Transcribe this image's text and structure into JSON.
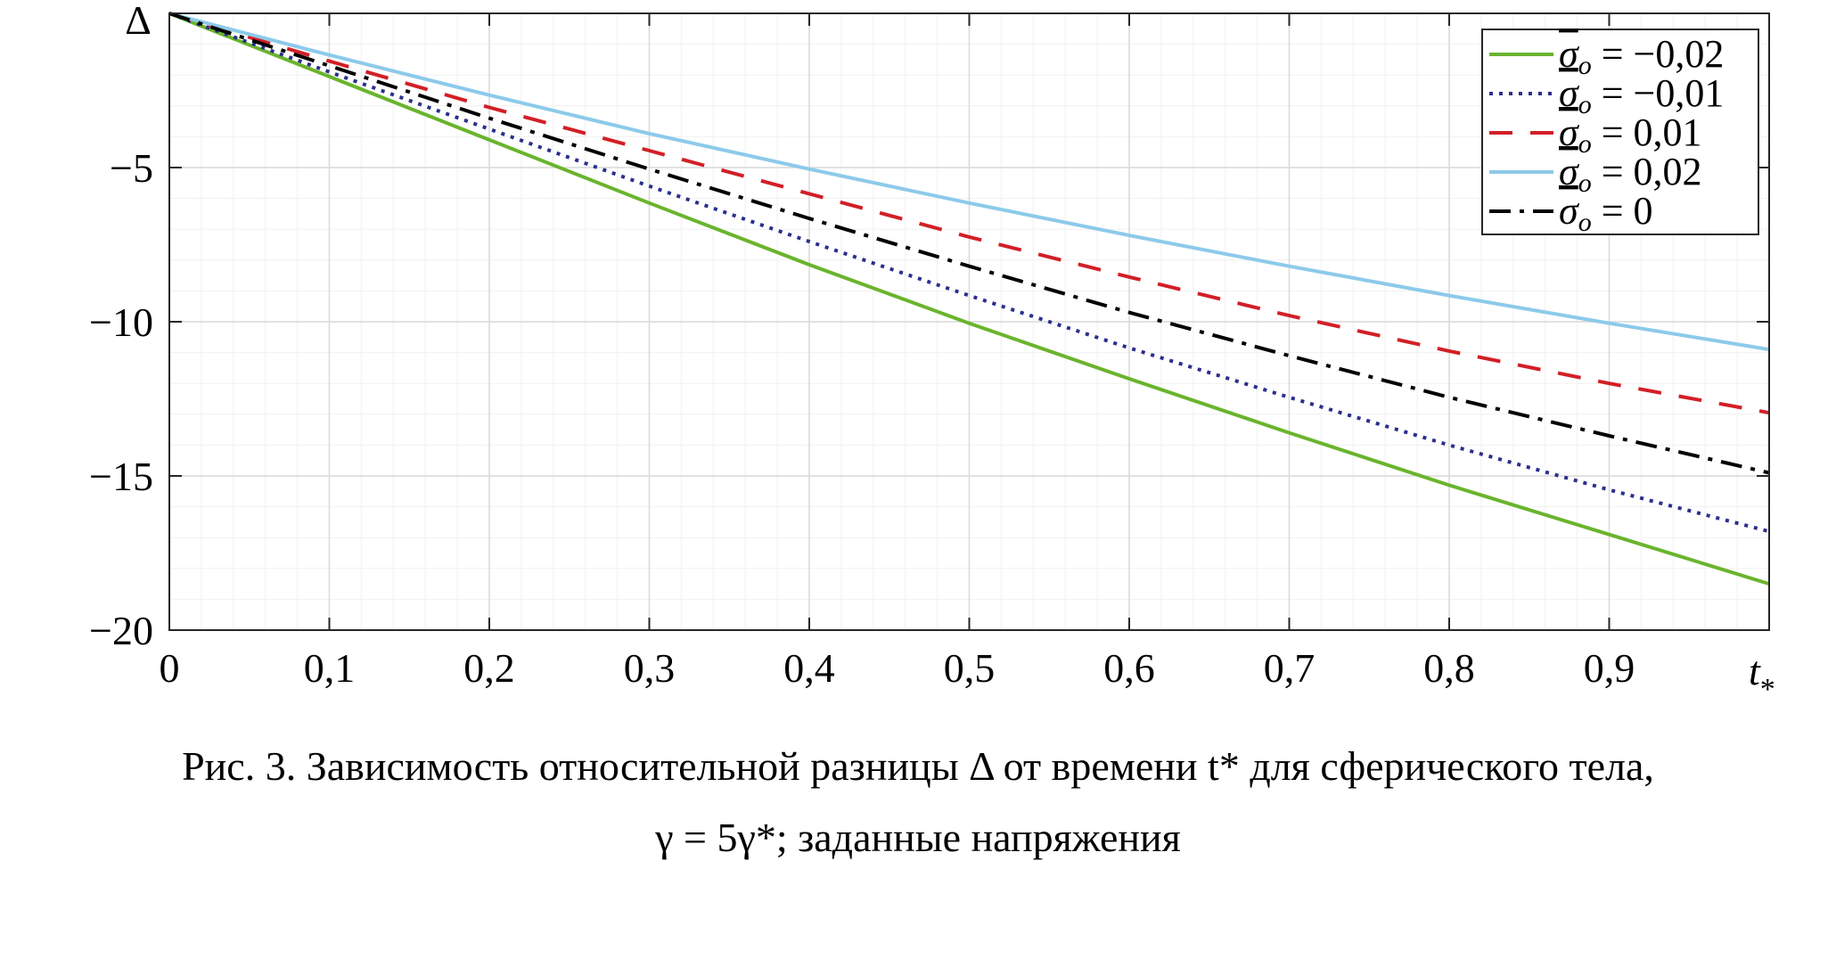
{
  "chart_data": {
    "type": "line",
    "xlabel": "t",
    "xlabel_sub": "*",
    "ylabel": "Δ",
    "xlim": [
      0,
      1
    ],
    "ylim": [
      -20,
      0
    ],
    "x_ticks": [
      {
        "value": 0,
        "label": "0"
      },
      {
        "value": 0.1,
        "label": "0,1"
      },
      {
        "value": 0.2,
        "label": "0,2"
      },
      {
        "value": 0.3,
        "label": "0,3"
      },
      {
        "value": 0.4,
        "label": "0,4"
      },
      {
        "value": 0.5,
        "label": "0,5"
      },
      {
        "value": 0.6,
        "label": "0,6"
      },
      {
        "value": 0.7,
        "label": "0,7"
      },
      {
        "value": 0.8,
        "label": "0,8"
      },
      {
        "value": 0.9,
        "label": "0,9"
      }
    ],
    "y_ticks": [
      {
        "value": -5,
        "label": "−5"
      },
      {
        "value": -10,
        "label": "−10"
      },
      {
        "value": -15,
        "label": "−15"
      },
      {
        "value": -20,
        "label": "−20"
      }
    ],
    "grid": true,
    "legend_position": "top-right",
    "series": [
      {
        "name": "= −0,02",
        "color": "#6ab42d",
        "style": "solid",
        "x": [
          0,
          0.1,
          0.2,
          0.3,
          0.4,
          0.5,
          0.6,
          0.7,
          0.8,
          0.9,
          1.0
        ],
        "y": [
          0,
          -2.05,
          -4.1,
          -6.15,
          -8.15,
          -10.05,
          -11.85,
          -13.6,
          -15.3,
          -16.9,
          -18.5
        ]
      },
      {
        "name": "= −0,01",
        "color": "#2a2f8c",
        "style": "dotted",
        "x": [
          0,
          0.1,
          0.2,
          0.3,
          0.4,
          0.5,
          0.6,
          0.7,
          0.8,
          0.9,
          1.0
        ],
        "y": [
          0,
          -1.9,
          -3.75,
          -5.6,
          -7.4,
          -9.15,
          -10.85,
          -12.45,
          -14.0,
          -15.45,
          -16.8
        ]
      },
      {
        "name": "= 0,01",
        "color": "#d21f26",
        "style": "dashed",
        "x": [
          0,
          0.1,
          0.2,
          0.3,
          0.4,
          0.5,
          0.6,
          0.7,
          0.8,
          0.9,
          1.0
        ],
        "y": [
          0,
          -1.55,
          -3.05,
          -4.45,
          -5.85,
          -7.25,
          -8.55,
          -9.8,
          -10.95,
          -12.0,
          -12.95
        ]
      },
      {
        "name": "= 0,02",
        "color": "#8ccaea",
        "style": "solid",
        "x": [
          0,
          0.1,
          0.2,
          0.3,
          0.4,
          0.5,
          0.6,
          0.7,
          0.8,
          0.9,
          1.0
        ],
        "y": [
          0,
          -1.35,
          -2.65,
          -3.9,
          -5.05,
          -6.15,
          -7.2,
          -8.2,
          -9.15,
          -10.05,
          -10.9
        ]
      },
      {
        "name": "= 0",
        "color": "#000000",
        "style": "dashdot",
        "x": [
          0,
          0.1,
          0.2,
          0.3,
          0.4,
          0.5,
          0.6,
          0.7,
          0.8,
          0.9,
          1.0
        ],
        "y": [
          0,
          -1.7,
          -3.4,
          -5.05,
          -6.65,
          -8.2,
          -9.7,
          -11.1,
          -12.45,
          -13.7,
          -14.9
        ]
      }
    ],
    "legend_symbol": "σ",
    "legend_symbol_sub": "o"
  },
  "caption": {
    "line1": "Рис. 3. Зависимость относительной разницы Δ от времени t* для сферического тела,",
    "line2": "γ = 5γ*; заданные напряжения"
  }
}
